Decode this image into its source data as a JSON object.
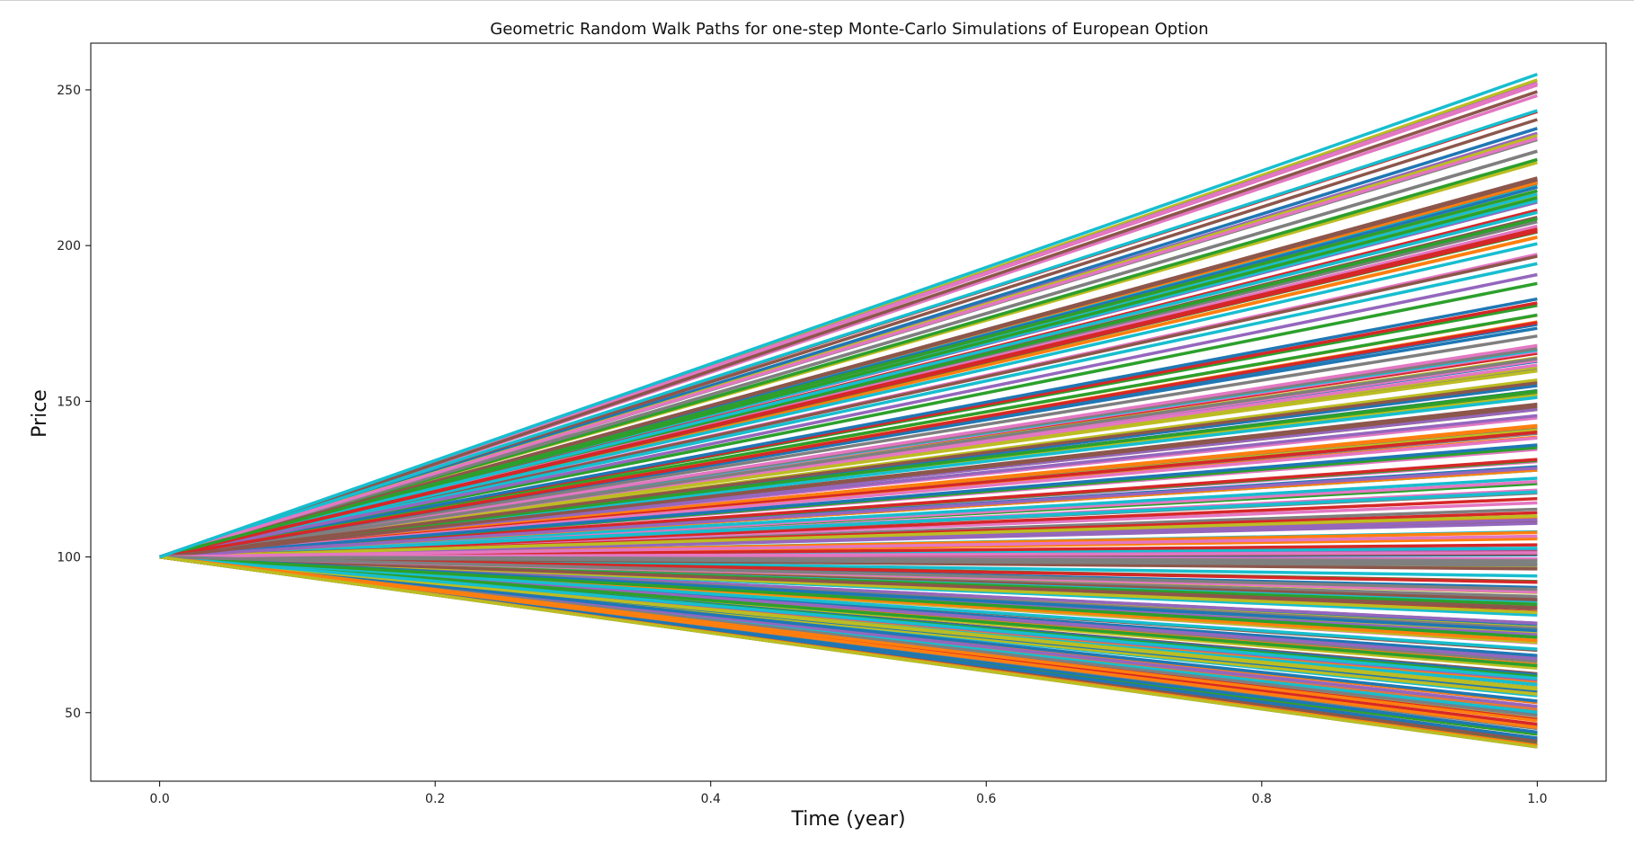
{
  "chart_data": {
    "type": "line",
    "title": "Geometric Random Walk Paths for one-step Monte-Carlo Simulations of European Option",
    "xlabel": "Time (year)",
    "ylabel": "Price",
    "xlim": [
      -0.05,
      1.05
    ],
    "ylim": [
      28,
      265
    ],
    "x_ticks": [
      "0.0",
      "0.2",
      "0.4",
      "0.6",
      "0.8",
      "1.0"
    ],
    "y_ticks": [
      "50",
      "100",
      "150",
      "200",
      "250"
    ],
    "grid": false,
    "legend": "none",
    "x": [
      0.0,
      1.0
    ],
    "start_price": 100,
    "path_count": 300,
    "end_price_min": 39,
    "end_price_max": 255,
    "palette": [
      "#1f77b4",
      "#ff7f0e",
      "#2ca02c",
      "#d62728",
      "#9467bd",
      "#8c564b",
      "#e377c2",
      "#7f7f7f",
      "#bcbd22",
      "#17becf"
    ]
  }
}
